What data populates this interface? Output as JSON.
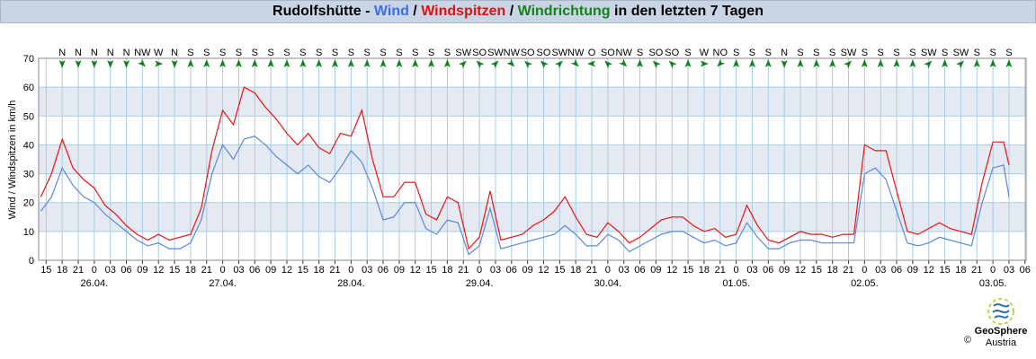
{
  "chart_data": {
    "type": "line",
    "title_parts": [
      {
        "text": "Rudolfshütte - ",
        "color": "#000000"
      },
      {
        "text": "Wind",
        "color": "#3a6fe0"
      },
      {
        "text": " / ",
        "color": "#000000"
      },
      {
        "text": "Windspitzen",
        "color": "#e01010"
      },
      {
        "text": " / ",
        "color": "#000000"
      },
      {
        "text": "Windrichtung",
        "color": "#12821a"
      },
      {
        "text": " in den letzten 7 Tagen",
        "color": "#000000"
      }
    ],
    "y_label": "Wind / Windspitzen in km/h",
    "xlim": [
      -1.4,
      183.2
    ],
    "ylim": [
      0,
      70
    ],
    "yticks": [
      0,
      10,
      20,
      30,
      40,
      50,
      60,
      70
    ],
    "shaded_bands": [
      [
        10,
        20
      ],
      [
        30,
        40
      ],
      [
        50,
        60
      ]
    ],
    "grid": true,
    "xticks": [
      {
        "value": 0,
        "label": "15"
      },
      {
        "value": 3,
        "label": "18"
      },
      {
        "value": 6,
        "label": "21"
      },
      {
        "value": 9,
        "label": "0"
      },
      {
        "value": 12,
        "label": "03"
      },
      {
        "value": 15,
        "label": "06"
      },
      {
        "value": 18,
        "label": "09"
      },
      {
        "value": 21,
        "label": "12"
      },
      {
        "value": 24,
        "label": "15"
      },
      {
        "value": 27,
        "label": "18"
      },
      {
        "value": 30,
        "label": "21"
      },
      {
        "value": 33,
        "label": "0"
      },
      {
        "value": 36,
        "label": "03"
      },
      {
        "value": 39,
        "label": "06"
      },
      {
        "value": 42,
        "label": "09"
      },
      {
        "value": 45,
        "label": "12"
      },
      {
        "value": 48,
        "label": "15"
      },
      {
        "value": 51,
        "label": "18"
      },
      {
        "value": 54,
        "label": "21"
      },
      {
        "value": 57,
        "label": "0"
      },
      {
        "value": 60,
        "label": "03"
      },
      {
        "value": 63,
        "label": "06"
      },
      {
        "value": 66,
        "label": "09"
      },
      {
        "value": 69,
        "label": "12"
      },
      {
        "value": 72,
        "label": "15"
      },
      {
        "value": 75,
        "label": "18"
      },
      {
        "value": 78,
        "label": "21"
      },
      {
        "value": 81,
        "label": "0"
      },
      {
        "value": 84,
        "label": "03"
      },
      {
        "value": 87,
        "label": "06"
      },
      {
        "value": 90,
        "label": "09"
      },
      {
        "value": 93,
        "label": "12"
      },
      {
        "value": 96,
        "label": "15"
      },
      {
        "value": 99,
        "label": "18"
      },
      {
        "value": 102,
        "label": "21"
      },
      {
        "value": 105,
        "label": "0"
      },
      {
        "value": 108,
        "label": "03"
      },
      {
        "value": 111,
        "label": "06"
      },
      {
        "value": 114,
        "label": "09"
      },
      {
        "value": 117,
        "label": "12"
      },
      {
        "value": 120,
        "label": "15"
      },
      {
        "value": 123,
        "label": "18"
      },
      {
        "value": 126,
        "label": "21"
      },
      {
        "value": 129,
        "label": "0"
      },
      {
        "value": 132,
        "label": "03"
      },
      {
        "value": 135,
        "label": "06"
      },
      {
        "value": 138,
        "label": "09"
      },
      {
        "value": 141,
        "label": "12"
      },
      {
        "value": 144,
        "label": "15"
      },
      {
        "value": 147,
        "label": "18"
      },
      {
        "value": 150,
        "label": "21"
      },
      {
        "value": 153,
        "label": "0"
      },
      {
        "value": 156,
        "label": "03"
      },
      {
        "value": 159,
        "label": "06"
      },
      {
        "value": 162,
        "label": "09"
      },
      {
        "value": 165,
        "label": "12"
      },
      {
        "value": 168,
        "label": "15"
      },
      {
        "value": 171,
        "label": "18"
      },
      {
        "value": 174,
        "label": "21"
      },
      {
        "value": 177,
        "label": "0"
      },
      {
        "value": 180,
        "label": "03"
      },
      {
        "value": 183,
        "label": "06"
      }
    ],
    "date_ticks": [
      {
        "value": 9,
        "label": "26.04."
      },
      {
        "value": 33,
        "label": "27.04."
      },
      {
        "value": 57,
        "label": "28.04."
      },
      {
        "value": 81,
        "label": "29.04."
      },
      {
        "value": 105,
        "label": "30.04."
      },
      {
        "value": 129,
        "label": "01.05."
      },
      {
        "value": 153,
        "label": "02.05."
      },
      {
        "value": 177,
        "label": "03.05."
      }
    ],
    "direction": {
      "color": "#12821a",
      "x": [
        3,
        6,
        9,
        12,
        15,
        18,
        21,
        24,
        27,
        30,
        33,
        36,
        39,
        42,
        45,
        48,
        51,
        54,
        57,
        60,
        63,
        66,
        69,
        72,
        75,
        78,
        81,
        84,
        87,
        90,
        93,
        96,
        99,
        102,
        105,
        108,
        111,
        114,
        117,
        120,
        123,
        126,
        129,
        132,
        135,
        138,
        141,
        144,
        147,
        150,
        153,
        156,
        159,
        162,
        165,
        168,
        171,
        174,
        177,
        180
      ],
      "labels": [
        "N",
        "N",
        "N",
        "N",
        "N",
        "NW",
        "W",
        "N",
        "S",
        "S",
        "S",
        "S",
        "S",
        "S",
        "S",
        "S",
        "S",
        "S",
        "S",
        "S",
        "S",
        "S",
        "S",
        "S",
        "S",
        "SW",
        "SO",
        "SW",
        "NW",
        "SO",
        "SO",
        "SW",
        "NW",
        "O",
        "SO",
        "NW",
        "S",
        "SO",
        "SO",
        "S",
        "W",
        "NO",
        "S",
        "S",
        "S",
        "N",
        "S",
        "S",
        "S",
        "SW",
        "S",
        "S",
        "S",
        "S",
        "SW",
        "S",
        "SW",
        "S",
        "S",
        "S"
      ]
    },
    "x": [
      -1,
      1,
      3,
      5,
      7,
      9,
      11,
      13,
      15,
      17,
      19,
      21,
      23,
      25,
      27,
      29,
      31,
      33,
      35,
      37,
      39,
      41,
      43,
      45,
      47,
      49,
      51,
      53,
      55,
      57,
      59,
      61,
      63,
      65,
      67,
      69,
      71,
      73,
      75,
      77,
      79,
      81,
      83,
      85,
      87,
      89,
      91,
      93,
      95,
      97,
      99,
      101,
      103,
      105,
      107,
      109,
      111,
      113,
      115,
      117,
      119,
      121,
      123,
      125,
      127,
      129,
      131,
      133,
      135,
      137,
      139,
      141,
      143,
      145,
      147,
      149,
      151,
      153,
      155,
      157,
      159,
      161,
      163,
      165,
      167,
      169,
      171,
      173,
      175,
      177,
      179,
      180
    ],
    "series": [
      {
        "name": "Windspitzen",
        "color": "#ee1111",
        "values": [
          22,
          30,
          42,
          32,
          28,
          25,
          19,
          16,
          12,
          9,
          7,
          9,
          7,
          8,
          9,
          18,
          38,
          52,
          47,
          60,
          58,
          53,
          49,
          44,
          40,
          44,
          39,
          37,
          44,
          43,
          52,
          35,
          22,
          22,
          27,
          27,
          16,
          14,
          22,
          20,
          4,
          8,
          24,
          7,
          8,
          9,
          12,
          14,
          17,
          22,
          15,
          9,
          8,
          13,
          10,
          6,
          8,
          11,
          14,
          15,
          15,
          12,
          10,
          11,
          8,
          9,
          19,
          12,
          7,
          6,
          8,
          10,
          9,
          9,
          8,
          9,
          9,
          40,
          38,
          38,
          24,
          10,
          9,
          11,
          13,
          11,
          10,
          9,
          27,
          41,
          41,
          33
        ]
      },
      {
        "name": "Wind",
        "color": "#5b87dc",
        "values": [
          17,
          22,
          32,
          26,
          22,
          20,
          16,
          13,
          10,
          7,
          5,
          6,
          4,
          4,
          6,
          14,
          30,
          40,
          35,
          42,
          43,
          40,
          36,
          33,
          30,
          33,
          29,
          27,
          32,
          38,
          34,
          25,
          14,
          15,
          20,
          20,
          11,
          9,
          14,
          13,
          2,
          5,
          18,
          4,
          5,
          6,
          7,
          8,
          9,
          12,
          9,
          5,
          5,
          9,
          7,
          3,
          5,
          7,
          9,
          10,
          10,
          8,
          6,
          7,
          5,
          6,
          13,
          8,
          4,
          4,
          6,
          7,
          7,
          6,
          6,
          6,
          6,
          30,
          32,
          28,
          17,
          6,
          5,
          6,
          8,
          7,
          6,
          5,
          20,
          32,
          33,
          22
        ]
      }
    ],
    "logo": {
      "name": "GeoSphere",
      "sub": "Austria",
      "copyright": "©"
    }
  }
}
